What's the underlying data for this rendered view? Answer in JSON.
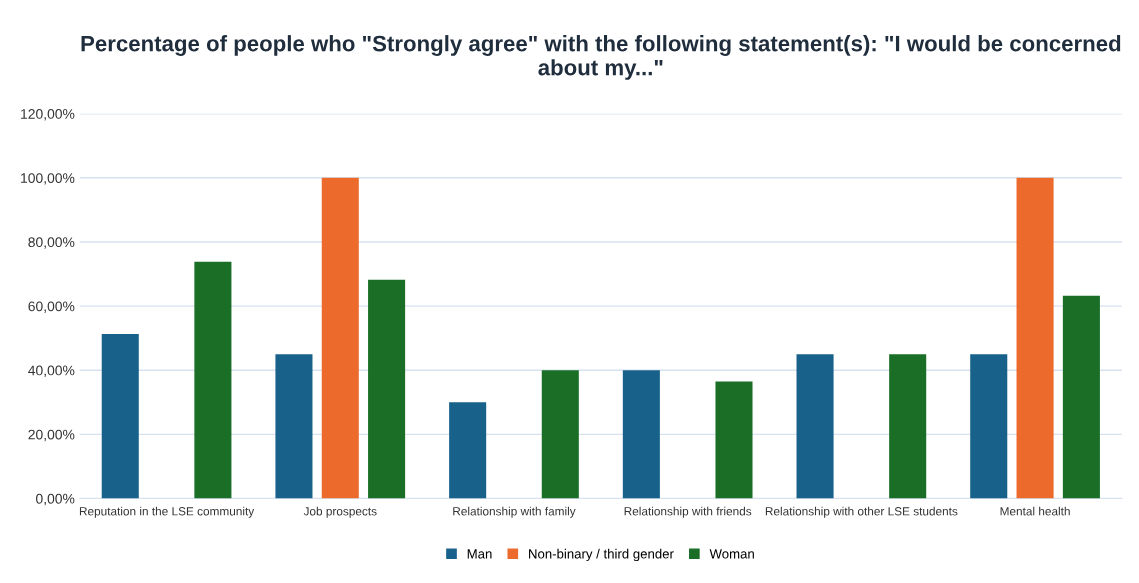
{
  "chart_data": {
    "type": "bar",
    "title": "Percentage of people who \"Strongly agree\" with the following statement(s): \"I would be concerned about my...\"",
    "categories": [
      "Reputation in the LSE community",
      "Job prospects",
      "Relationship with family",
      "Relationship with friends",
      "Relationship with other LSE students",
      "Mental health"
    ],
    "series": [
      {
        "name": "Man",
        "color": "#17618a",
        "values": [
          51.3,
          45,
          30,
          40,
          45,
          45
        ]
      },
      {
        "name": "Non-binary / third gender",
        "color": "#ec6a2c",
        "values": [
          null,
          100,
          null,
          null,
          null,
          100
        ]
      },
      {
        "name": "Woman",
        "color": "#1a6e26",
        "values": [
          73.8,
          68.2,
          40,
          36.5,
          45,
          63.2
        ]
      }
    ],
    "ylim": [
      0,
      120
    ],
    "yticks": [
      {
        "value": 0,
        "label": "0,00%"
      },
      {
        "value": 20,
        "label": "20,00%"
      },
      {
        "value": 40,
        "label": "40,00%"
      },
      {
        "value": 60,
        "label": "60,00%"
      },
      {
        "value": 80,
        "label": "80,00%"
      },
      {
        "value": 100,
        "label": "100,00%"
      },
      {
        "value": 120,
        "label": "120,00%"
      }
    ],
    "grid": "y",
    "legend": "bottom"
  }
}
